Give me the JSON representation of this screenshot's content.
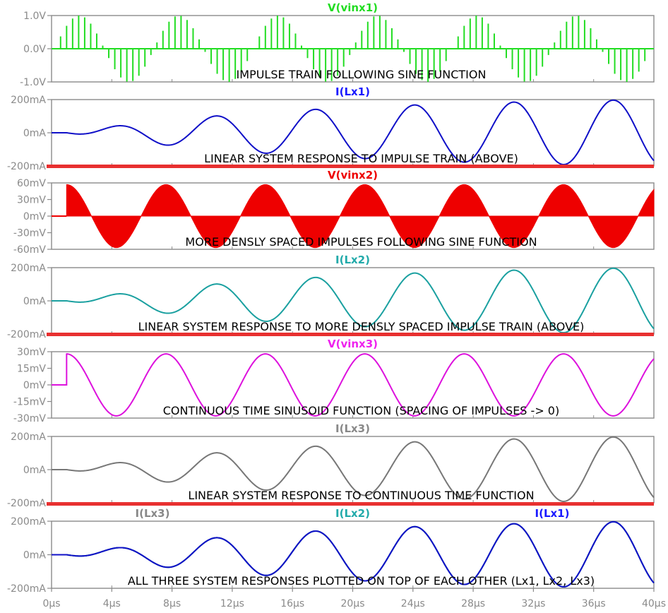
{
  "chart_data": [
    {
      "type": "line",
      "style": "impulse",
      "trace_labels": [
        {
          "text": "V(vinx1)",
          "color": "#22dd22",
          "align": "center"
        }
      ],
      "annotation": "IMPULSE TRAIN FOLLOWING SINE FUNCTION",
      "y_ticks": [
        {
          "v": 1,
          "label": "1.0V"
        },
        {
          "v": 0,
          "label": "0.0V"
        },
        {
          "v": -1,
          "label": "-1.0V"
        }
      ],
      "ylim": [
        -1,
        1
      ],
      "series": [
        {
          "color": "#22dd22",
          "kind": "impulses",
          "spacing_us": 0.4,
          "start_us": 0.6,
          "amplitude": 1,
          "period_us": 6.6
        }
      ]
    },
    {
      "type": "line",
      "trace_labels": [
        {
          "text": "I(Lx1)",
          "color": "#1a1aff",
          "align": "center"
        }
      ],
      "annotation": "LINEAR SYSTEM RESPONSE TO IMPULSE TRAIN (ABOVE)",
      "y_ticks": [
        {
          "v": 200,
          "label": "200mA"
        },
        {
          "v": 0,
          "label": "0mA"
        },
        {
          "v": -200,
          "label": "-200mA"
        }
      ],
      "ylim": [
        -200,
        200
      ],
      "series": [
        {
          "color": "#1010c8",
          "kind": "response",
          "peak": 200,
          "period_us": 6.6,
          "start_us": 1.0,
          "phase_lag_us": 1.65,
          "rise_tau_us": 16
        }
      ]
    },
    {
      "type": "area",
      "trace_labels": [
        {
          "text": "V(vinx2)",
          "color": "#ee0000",
          "align": "center"
        }
      ],
      "annotation": "MORE DENSLY SPACED IMPULSES FOLLOWING SINE FUNCTION",
      "y_ticks": [
        {
          "v": 60,
          "label": "60mV"
        },
        {
          "v": 30,
          "label": "30mV"
        },
        {
          "v": 0,
          "label": "0mV"
        },
        {
          "v": -30,
          "label": "-30mV"
        },
        {
          "v": -60,
          "label": "-60mV"
        }
      ],
      "ylim": [
        -60,
        60
      ],
      "series": [
        {
          "color": "#ee0000",
          "kind": "filled_sine",
          "amplitude": 57,
          "period_us": 6.6,
          "start_us": 1.0
        }
      ]
    },
    {
      "type": "line",
      "trace_labels": [
        {
          "text": "I(Lx2)",
          "color": "#22aaaa",
          "align": "center"
        }
      ],
      "annotation": "LINEAR SYSTEM RESPONSE TO MORE DENSLY SPACED IMPULSE TRAIN (ABOVE)",
      "y_ticks": [
        {
          "v": 200,
          "label": "200mA"
        },
        {
          "v": 0,
          "label": "0mA"
        },
        {
          "v": -200,
          "label": "-200mA"
        }
      ],
      "ylim": [
        -200,
        200
      ],
      "series": [
        {
          "color": "#1aa0a0",
          "kind": "response",
          "peak": 200,
          "period_us": 6.6,
          "start_us": 1.0,
          "phase_lag_us": 1.65,
          "rise_tau_us": 16
        }
      ]
    },
    {
      "type": "line",
      "trace_labels": [
        {
          "text": "V(vinx3)",
          "color": "#ee22ee",
          "align": "center"
        }
      ],
      "annotation": "CONTINUOUS TIME SINUSOID FUNCTION (SPACING OF IMPULSES -> 0)",
      "y_ticks": [
        {
          "v": 30,
          "label": "30mV"
        },
        {
          "v": 15,
          "label": "15mV"
        },
        {
          "v": 0,
          "label": "0mV"
        },
        {
          "v": -15,
          "label": "-15mV"
        },
        {
          "v": -30,
          "label": "-30mV"
        }
      ],
      "ylim": [
        -30,
        30
      ],
      "series": [
        {
          "color": "#dd11dd",
          "kind": "sine",
          "amplitude": 28,
          "period_us": 6.6,
          "start_us": 1.0
        }
      ]
    },
    {
      "type": "line",
      "trace_labels": [
        {
          "text": "I(Lx3)",
          "color": "#888888",
          "align": "center"
        }
      ],
      "annotation": "LINEAR SYSTEM RESPONSE TO CONTINUOUS TIME FUNCTION",
      "y_ticks": [
        {
          "v": 200,
          "label": "200mA"
        },
        {
          "v": 0,
          "label": "0mA"
        },
        {
          "v": -200,
          "label": "-200mA"
        }
      ],
      "ylim": [
        -200,
        200
      ],
      "series": [
        {
          "color": "#777777",
          "kind": "response",
          "peak": 200,
          "period_us": 6.6,
          "start_us": 1.0,
          "phase_lag_us": 1.65,
          "rise_tau_us": 16
        }
      ]
    },
    {
      "type": "line",
      "trace_labels": [
        {
          "text": "I(Lx3)",
          "color": "#888888",
          "align": "left"
        },
        {
          "text": "I(Lx2)",
          "color": "#22aaaa",
          "align": "center"
        },
        {
          "text": "I(Lx1)",
          "color": "#1a1aff",
          "align": "right"
        }
      ],
      "annotation": "ALL THREE SYSTEM RESPONSES PLOTTED ON TOP OF EACH OTHER (Lx1, Lx2, Lx3)",
      "y_ticks": [
        {
          "v": 200,
          "label": "200mA"
        },
        {
          "v": 0,
          "label": "0mA"
        },
        {
          "v": -200,
          "label": "-200mA"
        }
      ],
      "ylim": [
        -200,
        200
      ],
      "series": [
        {
          "color": "#777777",
          "kind": "response",
          "peak": 200,
          "period_us": 6.6,
          "start_us": 1.0,
          "phase_lag_us": 1.65,
          "rise_tau_us": 16
        },
        {
          "color": "#1aa0a0",
          "kind": "response",
          "peak": 200,
          "period_us": 6.6,
          "start_us": 1.0,
          "phase_lag_us": 1.65,
          "rise_tau_us": 16
        },
        {
          "color": "#1010c8",
          "kind": "response",
          "peak": 200,
          "period_us": 6.6,
          "start_us": 1.0,
          "phase_lag_us": 1.65,
          "rise_tau_us": 16
        }
      ]
    }
  ],
  "x_axis": {
    "xlim": [
      0,
      40
    ],
    "ticks": [
      {
        "v": 0,
        "label": "0µs"
      },
      {
        "v": 4,
        "label": "4µs"
      },
      {
        "v": 8,
        "label": "8µs"
      },
      {
        "v": 12,
        "label": "12µs"
      },
      {
        "v": 16,
        "label": "16µs"
      },
      {
        "v": 20,
        "label": "20µs"
      },
      {
        "v": 24,
        "label": "24µs"
      },
      {
        "v": 28,
        "label": "28µs"
      },
      {
        "v": 32,
        "label": "32µs"
      },
      {
        "v": 36,
        "label": "36µs"
      },
      {
        "v": 40,
        "label": "40µs"
      }
    ]
  },
  "colors": {
    "frame": "#8a8a8a",
    "tick_text": "#8a8a8a",
    "separator": "#e83030",
    "background": "#ffffff"
  }
}
